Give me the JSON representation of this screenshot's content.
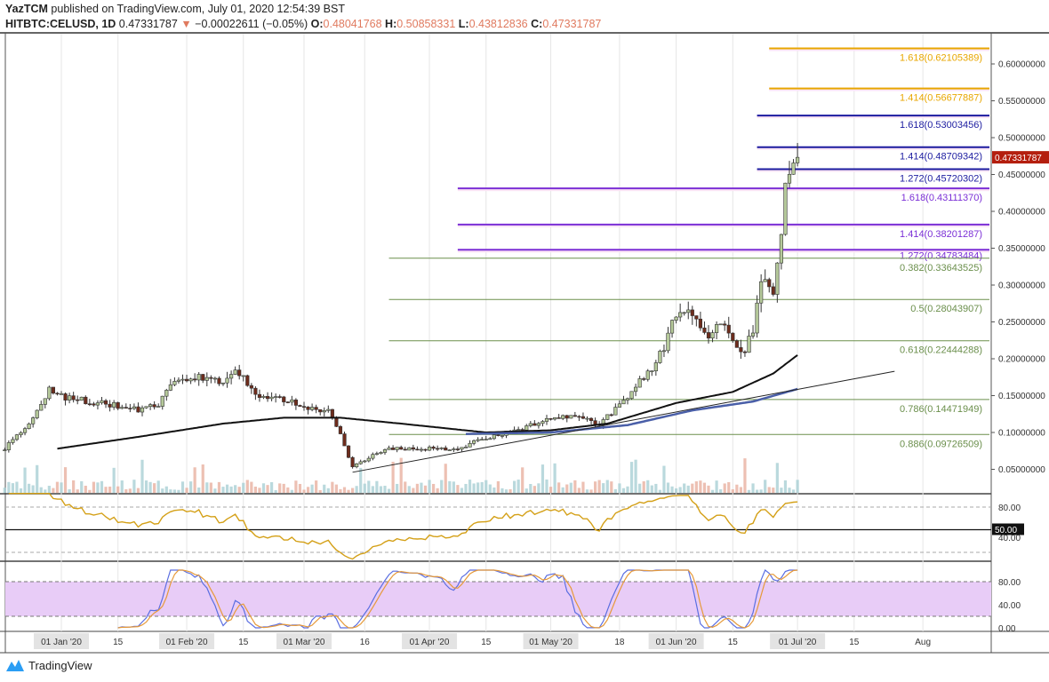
{
  "header": {
    "publisher": "YazTCM",
    "published_text": "published on TradingView.com, July 01, 2020 12:54:39 BST",
    "symbol": "HITBTC:CELUSD, 1D",
    "last": "0.47331787",
    "change": "−0.00022611 (−0.05%)",
    "o_label": "O:",
    "o": "0.48041768",
    "h_label": "H:",
    "h": "0.50858331",
    "l_label": "L:",
    "l": "0.43812836",
    "c_label": "C:",
    "c": "0.47331787"
  },
  "footer": {
    "brand": "TradingView"
  },
  "colors": {
    "up": "#b5c99a",
    "down": "#6e2c1c",
    "ma_long": "#111111",
    "ma_short": "#4a5fa8",
    "rsi": "#d4a017",
    "stoch_k": "#5b6ee1",
    "stoch_d": "#e69a3a",
    "stoch_band": "#e8ccf7",
    "last_price": "#b41e0e"
  },
  "chart_data": {
    "type": "candlestick",
    "price_axis": {
      "ticks": [
        "0.60000000",
        "0.55000000",
        "0.50000000",
        "0.45000000",
        "0.40000000",
        "0.35000000",
        "0.30000000",
        "0.25000000",
        "0.20000000",
        "0.15000000",
        "0.10000000",
        "0.05000000"
      ],
      "ylim": [
        0.02,
        0.64
      ]
    },
    "last_price_label": "0.47331787",
    "time_axis": [
      {
        "label": "01 Jan '20",
        "date": "2020-01-01",
        "boxed": true
      },
      {
        "label": "15",
        "date": "2020-01-15"
      },
      {
        "label": "01 Feb '20",
        "date": "2020-02-01",
        "boxed": true
      },
      {
        "label": "15",
        "date": "2020-02-15"
      },
      {
        "label": "01 Mar '20",
        "date": "2020-03-01",
        "boxed": true
      },
      {
        "label": "16",
        "date": "2020-03-16"
      },
      {
        "label": "01 Apr '20",
        "date": "2020-04-01",
        "boxed": true
      },
      {
        "label": "15",
        "date": "2020-04-15"
      },
      {
        "label": "01 May '20",
        "date": "2020-05-01",
        "boxed": true
      },
      {
        "label": "18",
        "date": "2020-05-18"
      },
      {
        "label": "01 Jun '20",
        "date": "2020-06-01",
        "boxed": true
      },
      {
        "label": "15",
        "date": "2020-06-15"
      },
      {
        "label": "01 Jul '20",
        "date": "2020-07-01",
        "boxed": true
      },
      {
        "label": "15",
        "date": "2020-07-15"
      },
      {
        "label": "Aug",
        "date": "2020-08-01"
      }
    ],
    "close_keypoints": [
      [
        "2019-12-18",
        0.078
      ],
      [
        "2019-12-23",
        0.108
      ],
      [
        "2019-12-27",
        0.135
      ],
      [
        "2019-12-29",
        0.157
      ],
      [
        "2019-12-31",
        0.15
      ],
      [
        "2020-01-08",
        0.142
      ],
      [
        "2020-01-21",
        0.13
      ],
      [
        "2020-01-25",
        0.138
      ],
      [
        "2020-01-29",
        0.168
      ],
      [
        "2020-02-03",
        0.175
      ],
      [
        "2020-02-10",
        0.168
      ],
      [
        "2020-02-13",
        0.187
      ],
      [
        "2020-02-19",
        0.15
      ],
      [
        "2020-02-25",
        0.145
      ],
      [
        "2020-03-01",
        0.133
      ],
      [
        "2020-03-07",
        0.129
      ],
      [
        "2020-03-10",
        0.096
      ],
      [
        "2020-03-13",
        0.054
      ],
      [
        "2020-03-17",
        0.066
      ],
      [
        "2020-03-22",
        0.078
      ],
      [
        "2020-03-31",
        0.078
      ],
      [
        "2020-04-09",
        0.078
      ],
      [
        "2020-04-13",
        0.09
      ],
      [
        "2020-04-22",
        0.102
      ],
      [
        "2020-05-01",
        0.12
      ],
      [
        "2020-05-10",
        0.12
      ],
      [
        "2020-05-12",
        0.108
      ],
      [
        "2020-05-18",
        0.135
      ],
      [
        "2020-05-23",
        0.168
      ],
      [
        "2020-05-27",
        0.193
      ],
      [
        "2020-05-29",
        0.217
      ],
      [
        "2020-06-01",
        0.259
      ],
      [
        "2020-06-05",
        0.259
      ],
      [
        "2020-06-09",
        0.235
      ],
      [
        "2020-06-13",
        0.247
      ],
      [
        "2020-06-16",
        0.211
      ],
      [
        "2020-06-18",
        0.211
      ],
      [
        "2020-06-20",
        0.241
      ],
      [
        "2020-06-21",
        0.283
      ],
      [
        "2020-06-23",
        0.313
      ],
      [
        "2020-06-25",
        0.295
      ],
      [
        "2020-06-26",
        0.325
      ],
      [
        "2020-06-27",
        0.373
      ],
      [
        "2020-06-28",
        0.428
      ],
      [
        "2020-06-29",
        0.452
      ],
      [
        "2020-06-30",
        0.473
      ],
      [
        "2020-07-01",
        0.4733
      ]
    ],
    "ma_long": [
      [
        "2019-12-31",
        0.078
      ],
      [
        "2020-01-20",
        0.094
      ],
      [
        "2020-02-10",
        0.112
      ],
      [
        "2020-02-25",
        0.12
      ],
      [
        "2020-03-10",
        0.12
      ],
      [
        "2020-03-25",
        0.112
      ],
      [
        "2020-04-15",
        0.1
      ],
      [
        "2020-05-01",
        0.103
      ],
      [
        "2020-05-15",
        0.112
      ],
      [
        "2020-06-01",
        0.14
      ],
      [
        "2020-06-15",
        0.155
      ],
      [
        "2020-06-25",
        0.18
      ],
      [
        "2020-07-01",
        0.205
      ]
    ],
    "ma_short": [
      [
        "2020-04-10",
        0.098
      ],
      [
        "2020-05-01",
        0.1
      ],
      [
        "2020-05-20",
        0.11
      ],
      [
        "2020-06-05",
        0.13
      ],
      [
        "2020-06-20",
        0.142
      ],
      [
        "2020-07-01",
        0.159
      ]
    ],
    "trendline": [
      [
        "2020-03-13",
        0.046
      ],
      [
        "2020-07-25",
        0.183
      ]
    ],
    "fib_levels": [
      {
        "label": "1.618(0.62105389)",
        "value": 0.62105389,
        "group": "ext_orange",
        "from": "2020-06-24"
      },
      {
        "label": "1.414(0.56677887)",
        "value": 0.56677887,
        "group": "ext_orange",
        "from": "2020-06-24"
      },
      {
        "label": "1.618(0.53003456)",
        "value": 0.53003456,
        "group": "ext_navy",
        "from": "2020-06-21"
      },
      {
        "label": "1.414(0.48709342)",
        "value": 0.48709342,
        "group": "ext_navy",
        "from": "2020-06-21"
      },
      {
        "label": "1.272(0.45720302)",
        "value": 0.45720302,
        "group": "ext_navy",
        "from": "2020-06-21"
      },
      {
        "label": "1.618(0.43111370)",
        "value": 0.4311137,
        "group": "ext_purple",
        "from": "2020-04-08"
      },
      {
        "label": "1.414(0.38201287)",
        "value": 0.38201287,
        "group": "ext_purple",
        "from": "2020-04-08"
      },
      {
        "label": "1.272(0.34783484)",
        "value": 0.34783484,
        "group": "ext_purple",
        "from": "2020-04-08"
      },
      {
        "label": "0.382(0.33643525)",
        "value": 0.33643525,
        "group": "retr_green",
        "from": "2020-03-22"
      },
      {
        "label": "0.5(0.28043907)",
        "value": 0.28043907,
        "group": "retr_green",
        "from": "2020-03-22"
      },
      {
        "label": "0.618(0.22444288)",
        "value": 0.22444288,
        "group": "retr_green",
        "from": "2020-03-22"
      },
      {
        "label": "0.786(0.14471949)",
        "value": 0.14471949,
        "group": "retr_green",
        "from": "2020-03-22"
      },
      {
        "label": "0.886(0.09726509)",
        "value": 0.09726509,
        "group": "retr_green",
        "from": "2020-03-22"
      }
    ],
    "fib_colors": {
      "ext_orange": "#e8a600",
      "ext_navy": "#1c1ca0",
      "ext_purple": "#7b2fd6",
      "retr_green": "#6b8f4c"
    },
    "rsi": {
      "ticks": [
        "80.00",
        "40.00"
      ],
      "marker": "50.00",
      "levels": [
        80,
        50,
        20
      ]
    },
    "stoch_rsi": {
      "ticks": [
        "80.00",
        "40.00",
        "0.00"
      ],
      "band": [
        20,
        80
      ]
    }
  }
}
